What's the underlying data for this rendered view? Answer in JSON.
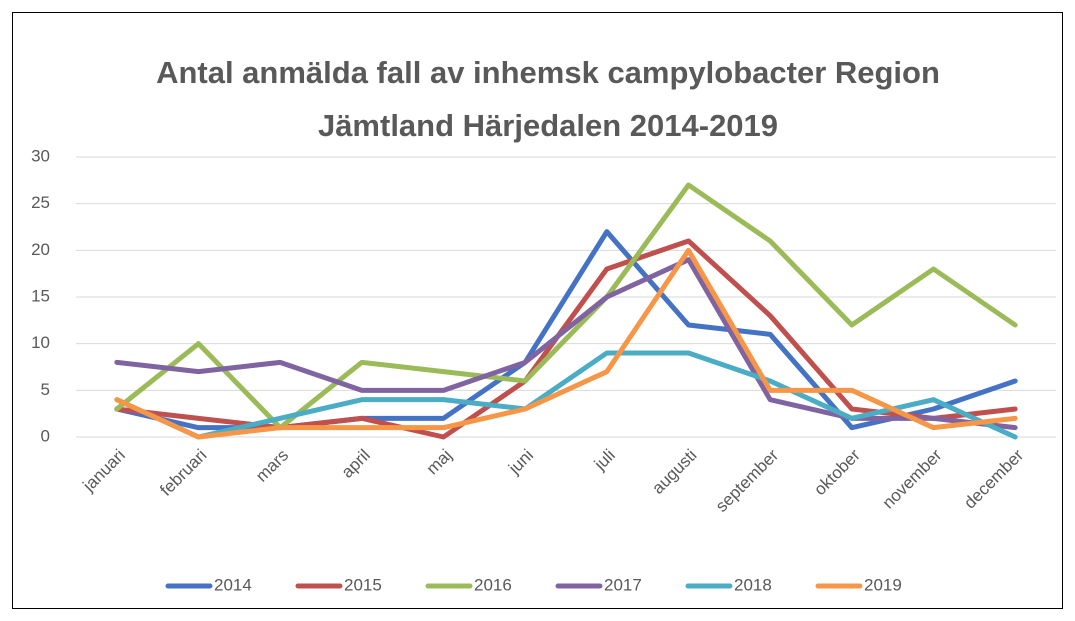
{
  "chart_data": {
    "type": "line",
    "title": [
      "Antal anmälda fall av inhemsk campylobacter Region",
      "Jämtland Härjedalen 2014-2019"
    ],
    "categories": [
      "januari",
      "februari",
      "mars",
      "april",
      "maj",
      "juni",
      "juli",
      "augusti",
      "september",
      "oktober",
      "november",
      "december"
    ],
    "series": [
      {
        "name": "2014",
        "color": "#4472c4",
        "values": [
          3,
          1,
          1,
          2,
          2,
          8,
          22,
          12,
          11,
          1,
          3,
          6
        ]
      },
      {
        "name": "2015",
        "color": "#c0504d",
        "values": [
          3,
          2,
          1,
          2,
          0,
          6,
          18,
          21,
          13,
          3,
          2,
          3
        ]
      },
      {
        "name": "2016",
        "color": "#9bbb59",
        "values": [
          3,
          10,
          1,
          8,
          7,
          6,
          15,
          27,
          21,
          12,
          18,
          12
        ]
      },
      {
        "name": "2017",
        "color": "#8064a2",
        "values": [
          8,
          7,
          8,
          5,
          5,
          8,
          15,
          19,
          4,
          2,
          2,
          1
        ]
      },
      {
        "name": "2018",
        "color": "#4bacc6",
        "values": [
          4,
          0,
          2,
          4,
          4,
          3,
          9,
          9,
          6,
          2,
          4,
          0
        ]
      },
      {
        "name": "2019",
        "color": "#f79646",
        "values": [
          4,
          0,
          1,
          1,
          1,
          3,
          7,
          20,
          5,
          5,
          1,
          2
        ]
      }
    ],
    "ylim": [
      0,
      30
    ],
    "yticks": [
      0,
      5,
      10,
      15,
      20,
      25,
      30
    ],
    "grid": true,
    "legend": "bottom"
  }
}
